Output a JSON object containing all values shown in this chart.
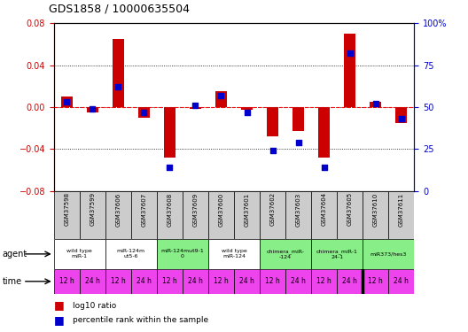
{
  "title": "GDS1858 / 10000635504",
  "samples": [
    "GSM37598",
    "GSM37599",
    "GSM37606",
    "GSM37607",
    "GSM37608",
    "GSM37609",
    "GSM37600",
    "GSM37601",
    "GSM37602",
    "GSM37603",
    "GSM37604",
    "GSM37605",
    "GSM37610",
    "GSM37611"
  ],
  "log10_ratio": [
    0.01,
    -0.005,
    0.065,
    -0.01,
    -0.048,
    -0.002,
    0.015,
    -0.003,
    -0.028,
    -0.023,
    -0.048,
    0.07,
    0.005,
    -0.015
  ],
  "percentile_rank": [
    53,
    49,
    62,
    47,
    14,
    51,
    57,
    47,
    24,
    29,
    14,
    82,
    52,
    43
  ],
  "ylim": [
    -0.08,
    0.08
  ],
  "yticks_left": [
    -0.08,
    -0.04,
    0.0,
    0.04,
    0.08
  ],
  "yticks_right": [
    0,
    25,
    50,
    75,
    100
  ],
  "agent_groups": [
    {
      "label": "wild type\nmiR-1",
      "cols": [
        0,
        1
      ],
      "color": "#ffffff"
    },
    {
      "label": "miR-124m\nut5-6",
      "cols": [
        2,
        3
      ],
      "color": "#ffffff"
    },
    {
      "label": "miR-124mut9-1\n0",
      "cols": [
        4,
        5
      ],
      "color": "#88ee88"
    },
    {
      "label": "wild type\nmiR-124",
      "cols": [
        6,
        7
      ],
      "color": "#ffffff"
    },
    {
      "label": "chimera_miR-\n-124",
      "cols": [
        8,
        9
      ],
      "color": "#88ee88"
    },
    {
      "label": "chimera_miR-1\n24-1",
      "cols": [
        10,
        11
      ],
      "color": "#88ee88"
    },
    {
      "label": "miR373/hes3",
      "cols": [
        12,
        13
      ],
      "color": "#88ee88"
    }
  ],
  "time_labels": [
    "12 h",
    "24 h",
    "12 h",
    "24 h",
    "12 h",
    "24 h",
    "12 h",
    "24 h",
    "12 h",
    "24 h",
    "12 h",
    "24 h",
    "12 h",
    "24 h"
  ],
  "time_color": "#ee44ee",
  "bar_color": "#cc0000",
  "dot_color": "#0000cc",
  "axis_left_color": "#cc0000",
  "axis_right_color": "#0000cc",
  "sample_bg_color": "#cccccc"
}
